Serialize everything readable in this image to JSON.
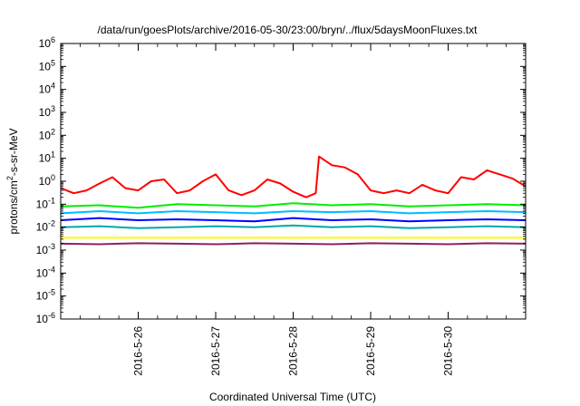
{
  "chart_data": {
    "type": "line",
    "title": "/data/run/goesPlots/archive/2016-05-30/23:00/bryn/../flux/5daysMoonFluxes.txt",
    "xlabel": "Coordinated Universal Time (UTC)",
    "ylabel": {
      "prefix": "protons/cm",
      "superscript": "2",
      "suffix": "-s-sr-MeV"
    },
    "log_y": true,
    "ylim": [
      1e-06,
      1000000.0
    ],
    "xlim": [
      "2016-05-25 00:00",
      "2016-05-31 00:00"
    ],
    "y_ticks": [
      {
        "base": "10",
        "exp": "-6",
        "value": 1e-06
      },
      {
        "base": "10",
        "exp": "-5",
        "value": 1e-05
      },
      {
        "base": "10",
        "exp": "-4",
        "value": 0.0001
      },
      {
        "base": "10",
        "exp": "-3",
        "value": 0.001
      },
      {
        "base": "10",
        "exp": "-2",
        "value": 0.01
      },
      {
        "base": "10",
        "exp": "-1",
        "value": 0.1
      },
      {
        "base": "10",
        "exp": "0",
        "value": 1
      },
      {
        "base": "10",
        "exp": "1",
        "value": 10
      },
      {
        "base": "10",
        "exp": "2",
        "value": 100
      },
      {
        "base": "10",
        "exp": "3",
        "value": 1000
      },
      {
        "base": "10",
        "exp": "4",
        "value": 10000
      },
      {
        "base": "10",
        "exp": "5",
        "value": 100000
      },
      {
        "base": "10",
        "exp": "6",
        "value": 1000000
      }
    ],
    "x_ticks": [
      {
        "label": "2016-5-26",
        "value": "2016-05-26"
      },
      {
        "label": "2016-5-27",
        "value": "2016-05-27"
      },
      {
        "label": "2016-5-28",
        "value": "2016-05-28"
      },
      {
        "label": "2016-5-29",
        "value": "2016-05-29"
      },
      {
        "label": "2016-5-30",
        "value": "2016-05-30"
      }
    ],
    "grid": false,
    "legend": "none",
    "series": [
      {
        "color": "#ff0000",
        "x": [
          "2016-05-25 00:00",
          "2016-05-25 04:00",
          "2016-05-25 08:00",
          "2016-05-25 12:00",
          "2016-05-25 16:00",
          "2016-05-25 20:00",
          "2016-05-26 00:00",
          "2016-05-26 04:00",
          "2016-05-26 08:00",
          "2016-05-26 12:00",
          "2016-05-26 16:00",
          "2016-05-26 20:00",
          "2016-05-27 00:00",
          "2016-05-27 04:00",
          "2016-05-27 08:00",
          "2016-05-27 12:00",
          "2016-05-27 16:00",
          "2016-05-27 20:00",
          "2016-05-28 00:00",
          "2016-05-28 04:00",
          "2016-05-28 07:00",
          "2016-05-28 08:00",
          "2016-05-28 12:00",
          "2016-05-28 16:00",
          "2016-05-28 20:00",
          "2016-05-29 00:00",
          "2016-05-29 04:00",
          "2016-05-29 08:00",
          "2016-05-29 12:00",
          "2016-05-29 16:00",
          "2016-05-29 20:00",
          "2016-05-30 00:00",
          "2016-05-30 04:00",
          "2016-05-30 08:00",
          "2016-05-30 12:00",
          "2016-05-30 16:00",
          "2016-05-30 20:00",
          "2016-05-31 00:00"
        ],
        "y": [
          0.5,
          0.3,
          0.4,
          0.8,
          1.5,
          0.5,
          0.4,
          1.0,
          1.2,
          0.3,
          0.4,
          1.0,
          2.0,
          0.4,
          0.25,
          0.4,
          1.2,
          0.8,
          0.35,
          0.2,
          0.3,
          12,
          5,
          4,
          2,
          0.4,
          0.3,
          0.4,
          0.3,
          0.7,
          0.4,
          0.3,
          1.5,
          1.2,
          3.0,
          2.0,
          1.3,
          0.6
        ]
      },
      {
        "color": "#00ee00",
        "x": [
          "2016-05-25 00:00",
          "2016-05-25 12:00",
          "2016-05-26 00:00",
          "2016-05-26 12:00",
          "2016-05-27 00:00",
          "2016-05-27 12:00",
          "2016-05-28 00:00",
          "2016-05-28 12:00",
          "2016-05-29 00:00",
          "2016-05-29 12:00",
          "2016-05-30 00:00",
          "2016-05-30 12:00",
          "2016-05-31 00:00"
        ],
        "y": [
          0.08,
          0.09,
          0.07,
          0.1,
          0.09,
          0.08,
          0.11,
          0.09,
          0.1,
          0.08,
          0.09,
          0.1,
          0.09
        ]
      },
      {
        "color": "#00bbff",
        "x": [
          "2016-05-25 00:00",
          "2016-05-25 12:00",
          "2016-05-26 00:00",
          "2016-05-26 12:00",
          "2016-05-27 00:00",
          "2016-05-27 12:00",
          "2016-05-28 00:00",
          "2016-05-28 12:00",
          "2016-05-29 00:00",
          "2016-05-29 12:00",
          "2016-05-30 00:00",
          "2016-05-30 12:00",
          "2016-05-31 00:00"
        ],
        "y": [
          0.04,
          0.05,
          0.04,
          0.05,
          0.045,
          0.04,
          0.05,
          0.045,
          0.05,
          0.04,
          0.045,
          0.05,
          0.045
        ]
      },
      {
        "color": "#0000ff",
        "x": [
          "2016-05-25 00:00",
          "2016-05-25 12:00",
          "2016-05-26 00:00",
          "2016-05-26 12:00",
          "2016-05-27 00:00",
          "2016-05-27 12:00",
          "2016-05-28 00:00",
          "2016-05-28 12:00",
          "2016-05-29 00:00",
          "2016-05-29 12:00",
          "2016-05-30 00:00",
          "2016-05-30 12:00",
          "2016-05-31 00:00"
        ],
        "y": [
          0.02,
          0.025,
          0.02,
          0.022,
          0.02,
          0.018,
          0.025,
          0.02,
          0.022,
          0.018,
          0.02,
          0.022,
          0.02
        ]
      },
      {
        "color": "#00aaaa",
        "x": [
          "2016-05-25 00:00",
          "2016-05-25 12:00",
          "2016-05-26 00:00",
          "2016-05-26 12:00",
          "2016-05-27 00:00",
          "2016-05-27 12:00",
          "2016-05-28 00:00",
          "2016-05-28 12:00",
          "2016-05-29 00:00",
          "2016-05-29 12:00",
          "2016-05-30 00:00",
          "2016-05-30 12:00",
          "2016-05-31 00:00"
        ],
        "y": [
          0.01,
          0.011,
          0.009,
          0.01,
          0.011,
          0.01,
          0.012,
          0.01,
          0.011,
          0.009,
          0.01,
          0.011,
          0.01
        ]
      },
      {
        "color": "#ffff00",
        "x": [
          "2016-05-25 00:00",
          "2016-05-25 12:00",
          "2016-05-26 00:00",
          "2016-05-26 12:00",
          "2016-05-27 00:00",
          "2016-05-27 12:00",
          "2016-05-28 00:00",
          "2016-05-28 12:00",
          "2016-05-29 00:00",
          "2016-05-29 12:00",
          "2016-05-30 00:00",
          "2016-05-30 12:00",
          "2016-05-31 00:00"
        ],
        "y": [
          0.0035,
          0.0035,
          0.0035,
          0.0035,
          0.0035,
          0.0035,
          0.0035,
          0.0035,
          0.0035,
          0.0035,
          0.0035,
          0.0035,
          0.0035
        ]
      },
      {
        "color": "#882266",
        "x": [
          "2016-05-25 00:00",
          "2016-05-25 12:00",
          "2016-05-26 00:00",
          "2016-05-26 12:00",
          "2016-05-27 00:00",
          "2016-05-27 12:00",
          "2016-05-28 00:00",
          "2016-05-28 12:00",
          "2016-05-29 00:00",
          "2016-05-29 12:00",
          "2016-05-30 00:00",
          "2016-05-30 12:00",
          "2016-05-31 00:00"
        ],
        "y": [
          0.0019,
          0.0018,
          0.002,
          0.0019,
          0.0018,
          0.002,
          0.0019,
          0.0018,
          0.002,
          0.0019,
          0.0018,
          0.002,
          0.0019
        ]
      }
    ]
  }
}
